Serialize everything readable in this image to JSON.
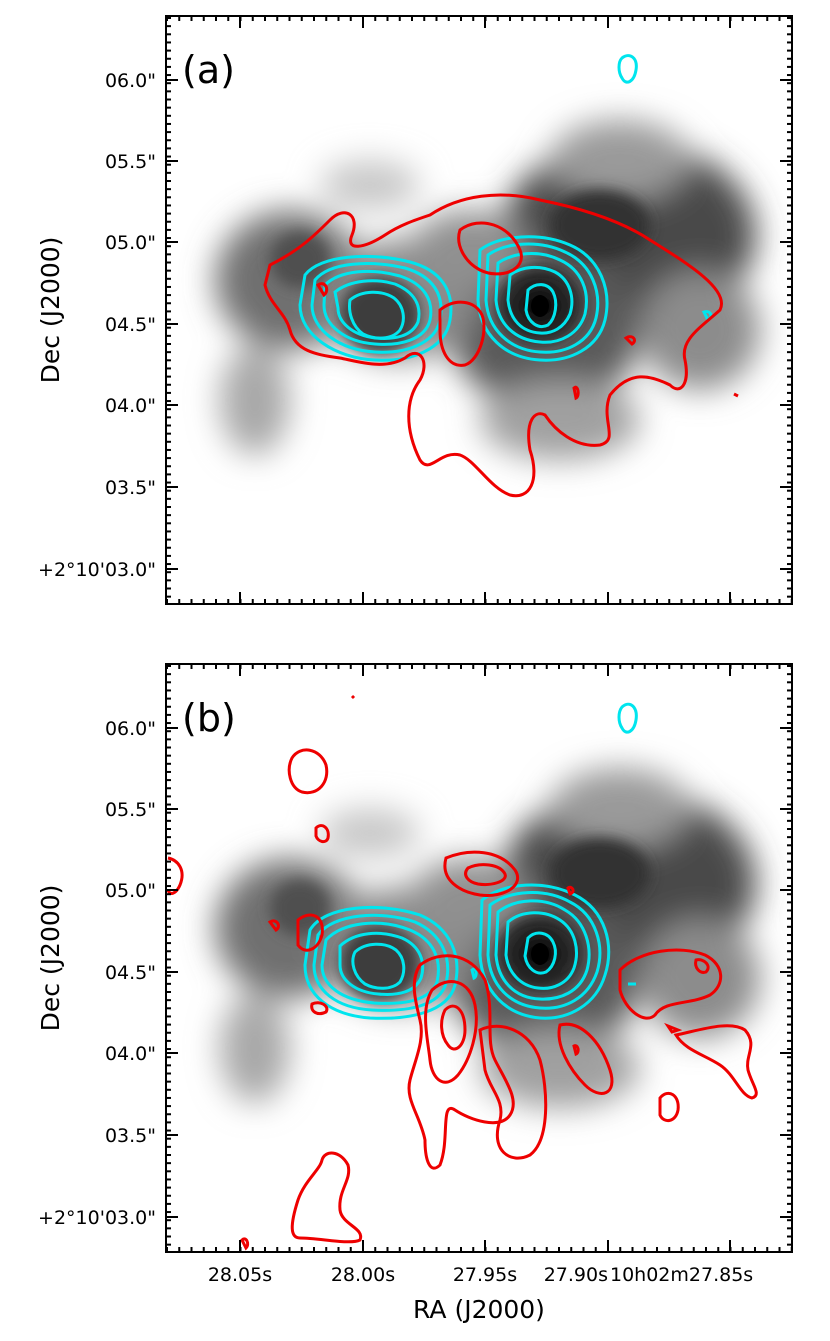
{
  "figure": {
    "xlabel": "RA (J2000)",
    "ylabel": "Dec (J2000)",
    "x_ticks": [
      "28.05s",
      "28.00s",
      "27.95s",
      "27.90s",
      "10h02m27.85s"
    ],
    "y_ticks": [
      "06.0\"",
      "05.5\"",
      "05.0\"",
      "04.5\"",
      "04.0\"",
      "03.5\"",
      "+2°10'03.0\""
    ]
  },
  "panels": [
    {
      "label": "(a)"
    },
    {
      "label": "(b)"
    }
  ],
  "chart_data": [
    {
      "type": "contour",
      "panel": "(a)",
      "xlabel": "",
      "ylabel": "Dec (J2000)",
      "x_ticks": [
        "28.05s",
        "28.00s",
        "27.95s",
        "27.90s",
        "10h02m27.85s"
      ],
      "y_ticks": [
        "06.0\"",
        "05.5\"",
        "05.0\"",
        "04.5\"",
        "04.0\"",
        "03.5\"",
        "+2°10'03.0\""
      ],
      "colors": {
        "background_map": "#000000",
        "contour_1": "#00e5ee",
        "contour_2": "#ee0000"
      }
    },
    {
      "type": "contour",
      "panel": "(b)",
      "xlabel": "RA (J2000)",
      "ylabel": "Dec (J2000)",
      "x_ticks": [
        "28.05s",
        "28.00s",
        "27.95s",
        "27.90s",
        "10h02m27.85s"
      ],
      "y_ticks": [
        "06.0\"",
        "05.5\"",
        "05.0\"",
        "04.5\"",
        "04.0\"",
        "03.5\"",
        "+2°10'03.0\""
      ],
      "colors": {
        "background_map": "#000000",
        "contour_1": "#00e5ee",
        "contour_2": "#ee0000"
      }
    }
  ]
}
